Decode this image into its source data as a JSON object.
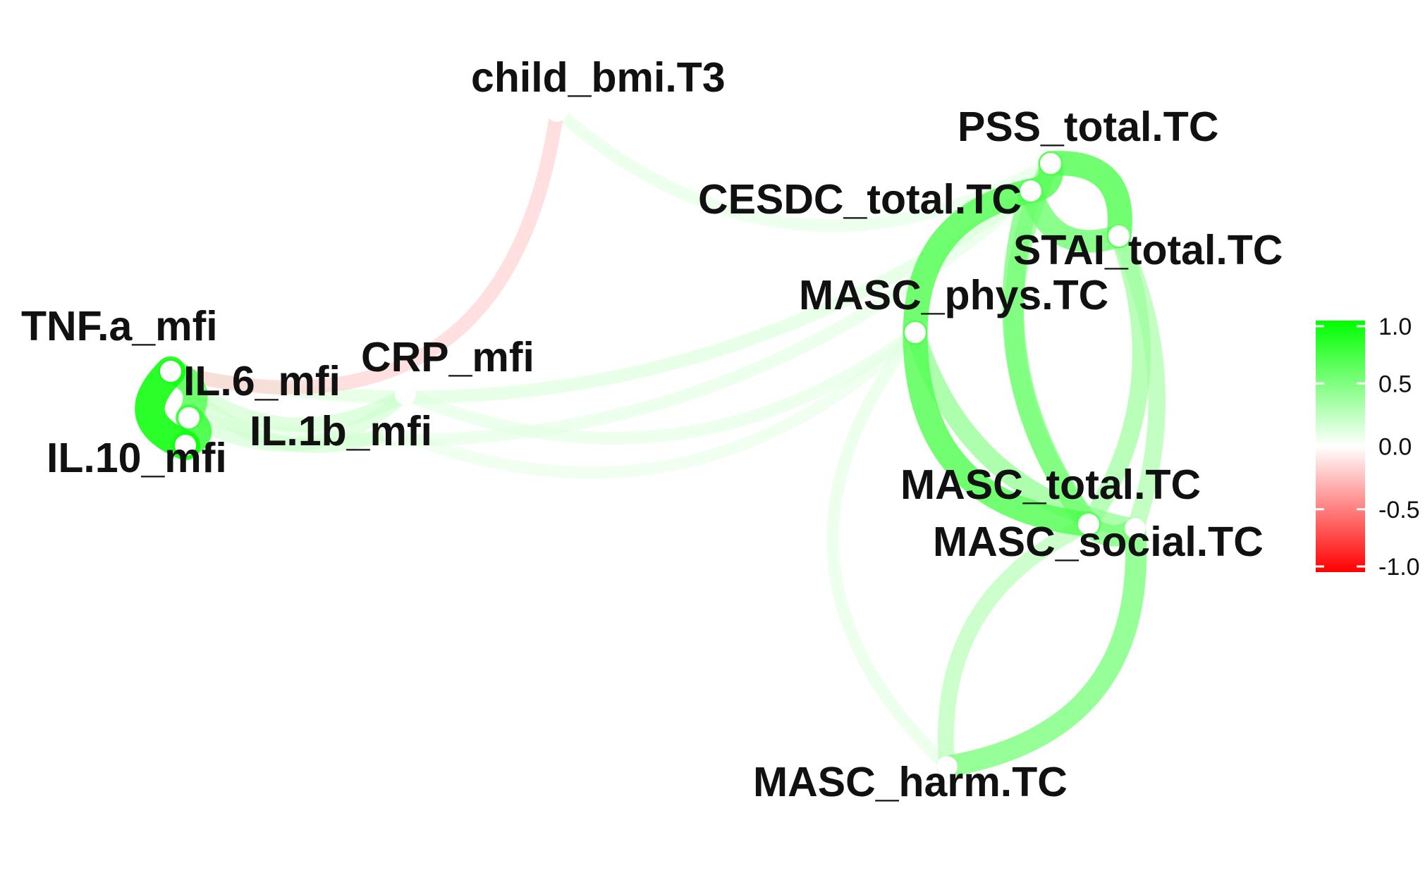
{
  "chart_data": {
    "type": "network",
    "nodes": [
      {
        "id": "child_bmi",
        "label": "child_bmi.T3"
      },
      {
        "id": "pss",
        "label": "PSS_total.TC"
      },
      {
        "id": "cesdc",
        "label": "CESDC_total.TC"
      },
      {
        "id": "stai",
        "label": "STAI_total.TC"
      },
      {
        "id": "masc_phys",
        "label": "MASC_phys.TC"
      },
      {
        "id": "tnf",
        "label": "TNF.a_mfi"
      },
      {
        "id": "crp",
        "label": "CRP_mfi"
      },
      {
        "id": "il6",
        "label": "IL.6_mfi"
      },
      {
        "id": "il1b",
        "label": "IL.1b_mfi"
      },
      {
        "id": "il10",
        "label": "IL.10_mfi"
      },
      {
        "id": "masc_total",
        "label": "MASC_total.TC"
      },
      {
        "id": "masc_social",
        "label": "MASC_social.TC"
      },
      {
        "id": "masc_harm",
        "label": "MASC_harm.TC"
      }
    ],
    "edges": [
      {
        "from": "tnf",
        "to": "child_bmi",
        "r": -0.2
      },
      {
        "from": "child_bmi",
        "to": "pss",
        "r": 0.12
      },
      {
        "from": "tnf",
        "to": "cesdc",
        "r": 0.15
      },
      {
        "from": "il6",
        "to": "cesdc",
        "r": 0.12
      },
      {
        "from": "il1b",
        "to": "masc_phys",
        "r": 0.1
      },
      {
        "from": "crp",
        "to": "masc_phys",
        "r": 0.12
      },
      {
        "from": "tnf",
        "to": "crp",
        "r": 0.2
      },
      {
        "from": "il6",
        "to": "crp",
        "r": 0.18
      },
      {
        "from": "tnf",
        "to": "il1b",
        "r": 0.2
      },
      {
        "from": "tnf",
        "to": "il10",
        "r": 0.95
      },
      {
        "from": "il6",
        "to": "il10",
        "r": 0.8
      },
      {
        "from": "tnf",
        "to": "il6",
        "r": 0.7
      },
      {
        "from": "pss",
        "to": "cesdc",
        "r": 0.7
      },
      {
        "from": "pss",
        "to": "stai",
        "r": 0.7
      },
      {
        "from": "cesdc",
        "to": "stai",
        "r": 0.6
      },
      {
        "from": "cesdc",
        "to": "masc_phys",
        "r": 0.7
      },
      {
        "from": "pss",
        "to": "masc_total",
        "r": 0.45
      },
      {
        "from": "cesdc",
        "to": "masc_total",
        "r": 0.55
      },
      {
        "from": "stai",
        "to": "masc_total",
        "r": 0.4
      },
      {
        "from": "stai",
        "to": "masc_social",
        "r": 0.35
      },
      {
        "from": "masc_phys",
        "to": "masc_total",
        "r": 0.7
      },
      {
        "from": "masc_phys",
        "to": "masc_social",
        "r": 0.45
      },
      {
        "from": "masc_total",
        "to": "masc_social",
        "r": 0.55
      },
      {
        "from": "masc_total",
        "to": "masc_harm",
        "r": 0.3
      },
      {
        "from": "masc_social",
        "to": "masc_harm",
        "r": 0.55
      },
      {
        "from": "masc_phys",
        "to": "masc_harm",
        "r": 0.12
      }
    ],
    "legend": {
      "ticks": [
        "1.0",
        "0.5",
        "0.0",
        "-0.5",
        "-1.0"
      ],
      "range": [
        -1,
        1
      ],
      "colors": {
        "negative": "#ff0000",
        "zero": "#ffffff",
        "positive": "#00ff00"
      }
    }
  }
}
